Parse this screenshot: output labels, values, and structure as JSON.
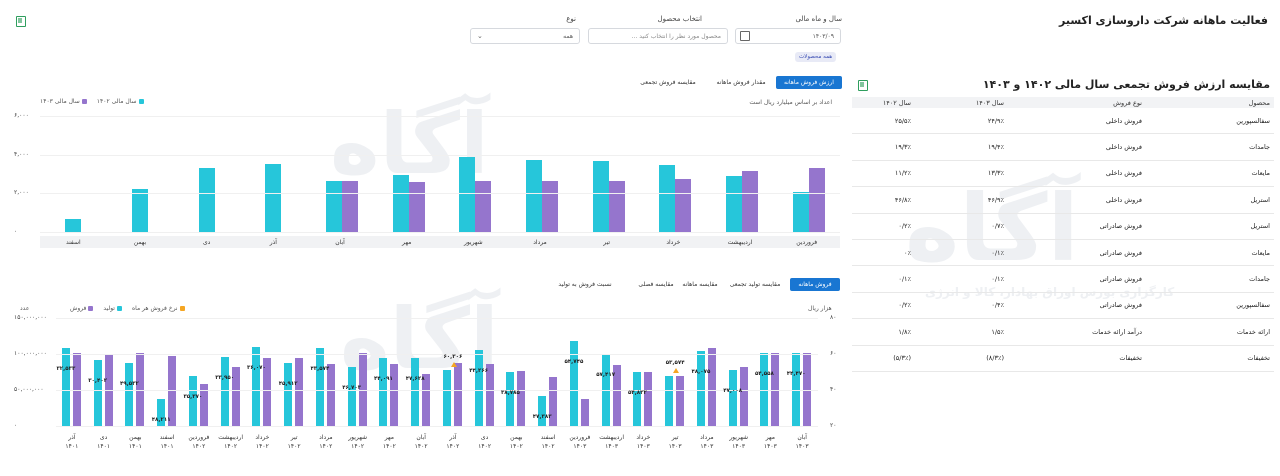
{
  "header": {
    "company_title": "فعالیت ماهانه شرکت داروسازی اکسیر",
    "filters": {
      "year_month_label": "سال و ماه مالی",
      "year_month_value": "۱۴۰۳/۰۹",
      "product_label": "انتخاب محصول",
      "product_placeholder": "محصول مورد نظر را انتخاب کنید ...",
      "type_label": "نوع",
      "type_value": "همه",
      "all_products_chip": "همه محصولات"
    }
  },
  "watermark": {
    "logo_text": "آگاه",
    "caption": "کارگزاری بورس اوراق بهادار، کالا و انرژی"
  },
  "table": {
    "title": "مقایسه ارزش فروش تجمعی سال مالی ۱۴۰۲ و ۱۴۰۳",
    "headers": [
      "محصول",
      "نوع فروش",
      "سال ۱۴۰۳",
      "سال ۱۴۰۲"
    ],
    "rows": [
      [
        "سفالسپورین",
        "فروش داخلی",
        "۲۴/۹٪",
        "۲۵/۵٪"
      ],
      [
        "جامدات",
        "فروش داخلی",
        "۱۹/۴٪",
        "۱۹/۳٪"
      ],
      [
        "مایعات",
        "فروش داخلی",
        "۱۳/۳٪",
        "۱۱/۲٪"
      ],
      [
        "استریل",
        "فروش داخلی",
        "۴۶/۹٪",
        "۴۶/۸٪"
      ],
      [
        "استریل",
        "فروش صادراتی",
        "۰/۷٪",
        "۰/۲٪"
      ],
      [
        "مایعات",
        "فروش صادراتی",
        "۰/۱٪",
        "۰٪"
      ],
      [
        "جامدات",
        "فروش صادراتی",
        "۰/۱٪",
        "۰/۱٪"
      ],
      [
        "سفالسپورین",
        "فروش صادراتی",
        "۰/۴٪",
        "۰/۲٪"
      ],
      [
        "ارائه خدمات",
        "درآمد ارائه خدمات",
        "۱/۵٪",
        "۱/۸٪"
      ],
      [
        "تخفیفات",
        "تخفیفات",
        "(۸/۳٪)",
        "(۵/۳٪)"
      ]
    ]
  },
  "top_tabs": [
    "ارزش فروش ماهانه",
    "مقدار فروش ماهانه",
    "مقایسه فروش تجمعی"
  ],
  "top_chart_note": "اعداد بر اساس میلیارد ریال است",
  "bottom_tabs": [
    "فروش ماهانه",
    "مقایسه تولید تجمعی",
    "مقایسه ماهانه",
    "مقایسه فصلی",
    "نسبت فروش به تولید"
  ],
  "bottom_axis_left_unit": "هزار ریال",
  "bottom_axis_right_unit": "عدد",
  "colors": {
    "cyan": "#26c6da",
    "purple": "#9575cd",
    "orange": "#f5a623",
    "accent": "#1976d2"
  },
  "chart_data": [
    {
      "type": "bar",
      "ylim": [
        0,
        6000
      ],
      "yticks": [
        "۶,۰۰۰",
        "۴,۰۰۰",
        "۲,۰۰۰",
        "۰"
      ],
      "categories": [
        "اسفند",
        "بهمن",
        "دی",
        "آذر",
        "آبان",
        "مهر",
        "شهریور",
        "مرداد",
        "تیر",
        "خرداد",
        "اردیبهشت",
        "فروردین"
      ],
      "series": [
        {
          "name": "سال مالی ۱۴۰۳",
          "values": [
            null,
            null,
            null,
            null,
            2650,
            2580,
            2650,
            2650,
            2650,
            2750,
            3150,
            3300
          ]
        },
        {
          "name": "سال مالی ۱۴۰۲",
          "values": [
            650,
            2250,
            3300,
            3500,
            2650,
            2950,
            3900,
            3750,
            3650,
            3450,
            2900,
            2050
          ]
        }
      ],
      "legend_position": "top-left"
    },
    {
      "type": "bar",
      "ylim_left": [
        0,
        150000000
      ],
      "yticks_left": [
        "۱۵۰,۰۰۰,۰۰۰",
        "۱۰۰,۰۰۰,۰۰۰",
        "۵۰,۰۰۰,۰۰۰",
        "۰"
      ],
      "yticks_right": [
        "۸۰",
        "۶۰",
        "۴۰",
        "۲۰"
      ],
      "categories": [
        "آبان ۱۴۰۳",
        "مهر ۱۴۰۳",
        "شهریور ۱۴۰۳",
        "مرداد ۱۴۰۳",
        "تیر ۱۴۰۳",
        "خرداد ۱۴۰۳",
        "اردیبهشت ۱۴۰۳",
        "فروردین ۱۴۰۳",
        "اسفند ۱۴۰۲",
        "بهمن ۱۴۰۲",
        "دی ۱۴۰۲",
        "آذر ۱۴۰۲",
        "آبان ۱۴۰۲",
        "مهر ۱۴۰۲",
        "شهریور ۱۴۰۲",
        "مرداد ۱۴۰۲",
        "تیر ۱۴۰۲",
        "خرداد ۱۴۰۲",
        "اردیبهشت ۱۴۰۲",
        "فروردین ۱۴۰۲",
        "اسفند ۱۴۰۱",
        "بهمن ۱۴۰۱",
        "دی ۱۴۰۱",
        "آذر ۱۴۰۱"
      ],
      "series": [
        {
          "name": "فروش",
          "values": [
            102,
            102,
            82,
            108,
            70,
            75,
            85,
            37,
            68,
            77,
            86,
            88,
            72,
            86,
            102,
            86,
            95,
            95,
            82,
            58,
            97,
            102,
            99,
            102
          ]
        },
        {
          "name": "تولید",
          "values": [
            102,
            102,
            78,
            104,
            70,
            75,
            100,
            118,
            42,
            75,
            105,
            78,
            95,
            94,
            82,
            108,
            88,
            110,
            96,
            70,
            38,
            88,
            91,
            108
          ]
        }
      ],
      "line_series": {
        "name": "نرخ فروش هر ماه",
        "marked_points": [
          {
            "category": "تیر ۱۴۰۳",
            "value": "۵۳,۵۷۴"
          },
          {
            "category": "آذر ۱۴۰۲",
            "value": "۶۰,۳۰۶"
          }
        ]
      },
      "bar_labels": [
        "۴۴,۴۷۰",
        "۵۴,۵۵۸",
        "۴۷,۰۰۸",
        "۴۸,۰۷۵",
        "",
        "۵۴,۸۲۲",
        "۵۷,۴۱۷",
        "۵۴,۷۴۵",
        "۴۷,۳۸۳",
        "۳۸,۷۸۵",
        "۴۴,۲۶۶",
        "",
        "۴۷,۶۲۸",
        "۴۴,۰۹۱",
        "۴۶,۷۰۳",
        "۴۳,۵۷۴",
        "۴۵,۹۱۲",
        "۳۶,۰۷۰",
        "۳۳,۹۵۰",
        "۳۵,۳۷۰",
        "۴۸,۲۱۱",
        "۴۹,۵۳۲",
        "۳۰,۴۰۲",
        "۳۲,۵۳۳"
      ],
      "legend_position": "top-right"
    }
  ]
}
